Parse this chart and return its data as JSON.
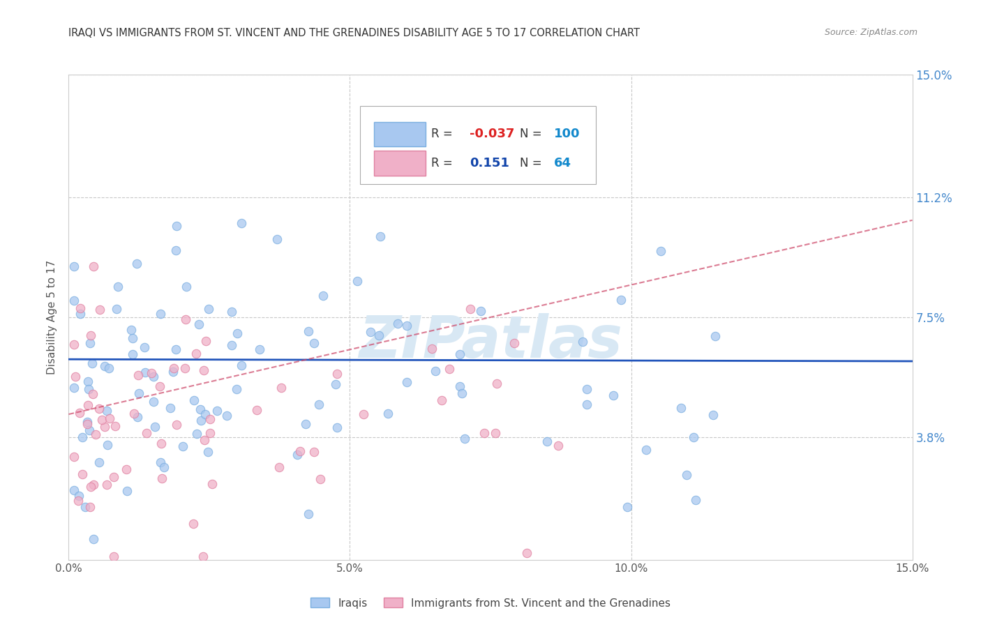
{
  "title": "IRAQI VS IMMIGRANTS FROM ST. VINCENT AND THE GRENADINES DISABILITY AGE 5 TO 17 CORRELATION CHART",
  "source": "Source: ZipAtlas.com",
  "ylabel": "Disability Age 5 to 17",
  "xmin": 0.0,
  "xmax": 0.15,
  "ymin": 0.0,
  "ymax": 0.15,
  "grid_color": "#c8c8c8",
  "background_color": "#ffffff",
  "iraqis_color": "#a8c8f0",
  "iraqis_edge_color": "#7aaee0",
  "svg_color": "#f0b0c8",
  "svg_edge_color": "#e080a0",
  "iraqis_R": -0.037,
  "iraqis_N": 100,
  "svg_R": 0.151,
  "svg_N": 64,
  "iraqis_line_color": "#2255bb",
  "svg_line_color": "#cc4466",
  "watermark_color": "#d8e8f4",
  "legend_text_color": "#1144aa",
  "legend_R_neg_color": "#dd2222",
  "legend_R_pos_color": "#1144aa",
  "legend_N_color": "#1188cc",
  "tick_label_color": "#4488cc",
  "title_color": "#333333"
}
